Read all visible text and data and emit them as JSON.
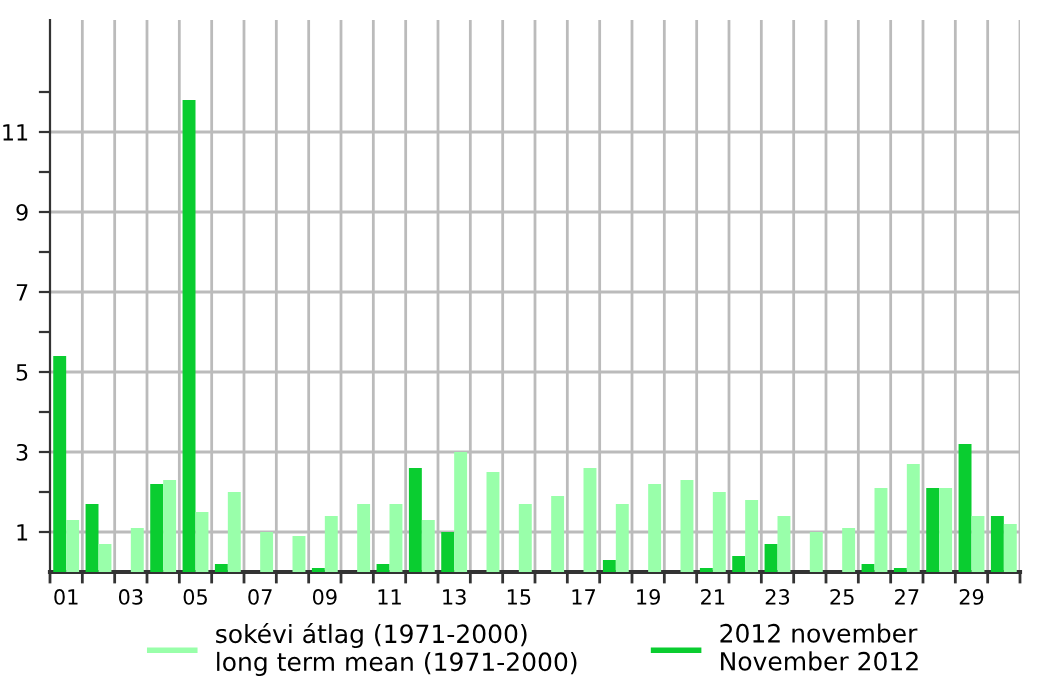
{
  "chart_data": {
    "type": "bar",
    "categories": [
      "01",
      null,
      "03",
      null,
      "05",
      null,
      "07",
      null,
      "09",
      null,
      "11",
      null,
      "13",
      null,
      "15",
      null,
      "17",
      null,
      "19",
      null,
      "21",
      null,
      "23",
      null,
      "25",
      null,
      "27",
      null,
      "29",
      null
    ],
    "series": [
      {
        "name": "2012 november\nNovember 2012",
        "color": "#0acd30",
        "values": [
          5.4,
          1.7,
          0,
          2.2,
          11.8,
          0.2,
          0,
          0,
          0.1,
          0,
          0.2,
          2.6,
          1.0,
          0,
          0,
          0,
          0,
          0.3,
          0,
          0,
          0.1,
          0.4,
          0.7,
          0,
          0,
          0.2,
          0.1,
          2.1,
          3.2,
          1.4
        ]
      },
      {
        "name": "sokévi átlag (1971-2000)\nlong term mean (1971-2000)",
        "color": "#99ffaa",
        "values": [
          1.3,
          0.7,
          1.1,
          2.3,
          1.5,
          2.0,
          1.0,
          0.9,
          1.4,
          1.7,
          1.7,
          1.3,
          3.0,
          2.5,
          1.7,
          1.9,
          2.6,
          1.7,
          2.2,
          2.3,
          2.0,
          1.8,
          1.4,
          1.0,
          1.1,
          2.1,
          2.7,
          2.1,
          1.4,
          1.2
        ]
      }
    ],
    "ylim": [
      0,
      13.8
    ],
    "yticks": [
      1,
      {
        "value": 2,
        "label": null
      },
      3,
      {
        "value": 4,
        "label": null
      },
      5,
      {
        "value": 6,
        "label": null
      },
      7,
      {
        "value": 8,
        "label": null
      },
      9,
      {
        "value": 10,
        "label": null
      },
      11,
      {
        "value": 12,
        "label": null
      }
    ],
    "grid": true,
    "legend": "bottom"
  }
}
